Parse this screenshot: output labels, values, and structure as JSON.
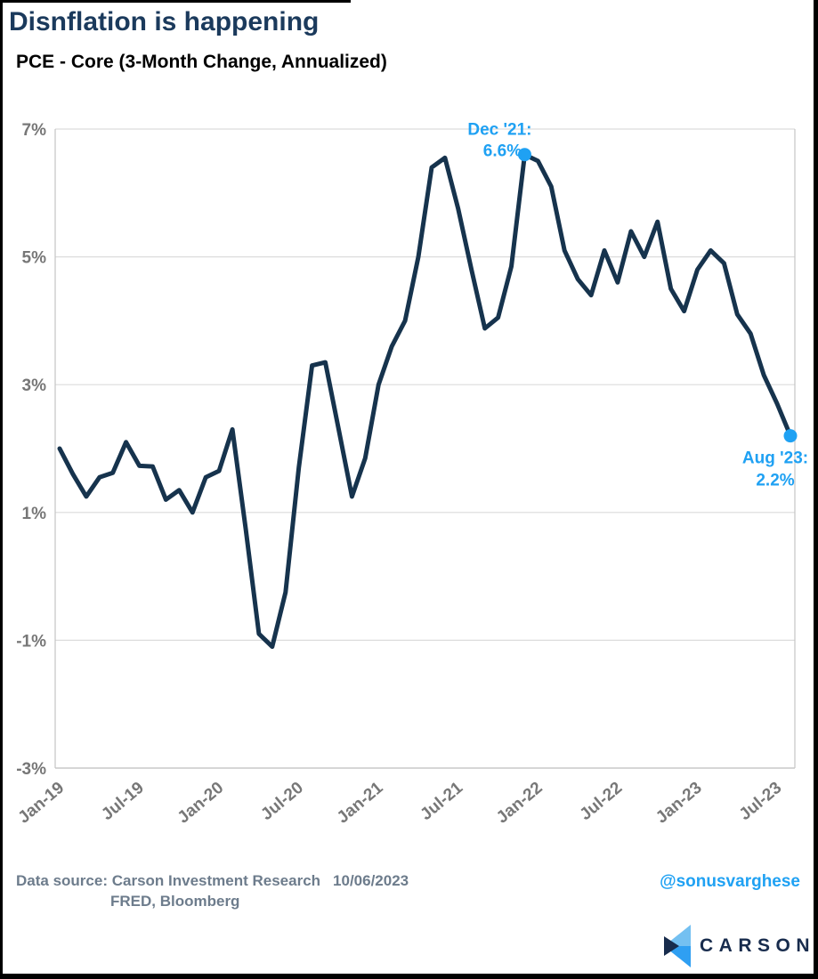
{
  "header": {
    "title": "Disnflation is happening",
    "subtitle": "PCE - Core (3-Month Change, Annualized)"
  },
  "chart_data": {
    "type": "line",
    "title": "PCE - Core (3-Month Change, Annualized)",
    "grid": "horizontal",
    "line_color": "#16334d",
    "accent_color": "#1fa1f3",
    "ylim": [
      -3,
      7
    ],
    "y_ticks": [
      7,
      5,
      3,
      1,
      -1,
      -3
    ],
    "y_tick_labels": [
      "7%",
      "5%",
      "3%",
      "1%",
      "-1%",
      "-3%"
    ],
    "x_tick_labels": [
      "Jan-19",
      "Jul-19",
      "Jan-20",
      "Jul-20",
      "Jan-21",
      "Jul-21",
      "Jan-22",
      "Jul-22",
      "Jan-23",
      "Jul-23"
    ],
    "x_tick_month_indices": [
      0,
      6,
      12,
      18,
      24,
      30,
      36,
      42,
      48,
      54
    ],
    "months": [
      "Jan-19",
      "Feb-19",
      "Mar-19",
      "Apr-19",
      "May-19",
      "Jun-19",
      "Jul-19",
      "Aug-19",
      "Sep-19",
      "Oct-19",
      "Nov-19",
      "Dec-19",
      "Jan-20",
      "Feb-20",
      "Mar-20",
      "Apr-20",
      "May-20",
      "Jun-20",
      "Jul-20",
      "Aug-20",
      "Sep-20",
      "Oct-20",
      "Nov-20",
      "Dec-20",
      "Jan-21",
      "Feb-21",
      "Mar-21",
      "Apr-21",
      "May-21",
      "Jun-21",
      "Jul-21",
      "Aug-21",
      "Sep-21",
      "Oct-21",
      "Nov-21",
      "Dec-21",
      "Jan-22",
      "Feb-22",
      "Mar-22",
      "Apr-22",
      "May-22",
      "Jun-22",
      "Jul-22",
      "Aug-22",
      "Sep-22",
      "Oct-22",
      "Nov-22",
      "Dec-22",
      "Jan-23",
      "Feb-23",
      "Mar-23",
      "Apr-23",
      "May-23",
      "Jun-23",
      "Jul-23",
      "Aug-23"
    ],
    "values": [
      2.0,
      1.6,
      1.25,
      1.55,
      1.62,
      2.1,
      1.73,
      1.72,
      1.2,
      1.35,
      1.0,
      1.55,
      1.65,
      2.3,
      0.75,
      -0.9,
      -1.1,
      -0.25,
      1.7,
      3.3,
      3.35,
      2.3,
      1.25,
      1.85,
      3.0,
      3.6,
      4.0,
      5.0,
      6.4,
      6.55,
      5.75,
      4.8,
      3.88,
      4.05,
      4.85,
      6.6,
      6.5,
      6.1,
      5.1,
      4.65,
      4.4,
      5.1,
      4.6,
      5.4,
      5.0,
      5.55,
      4.5,
      4.15,
      4.8,
      5.1,
      4.9,
      4.1,
      3.8,
      3.15,
      2.7,
      2.2
    ],
    "annotations": [
      {
        "index": 35,
        "line1": "Dec '21:",
        "line2": "6.6%",
        "placement": "above-left",
        "color": "#1fa1f3"
      },
      {
        "index": 55,
        "line1": "Aug '23:",
        "line2": "2.2%",
        "placement": "below-left",
        "color": "#1fa1f3"
      }
    ]
  },
  "footer": {
    "data_source_label": "Data source:",
    "sources_line1": "Carson Investment Research",
    "sources_line2": "FRED, Bloomberg",
    "date": "10/06/2023",
    "handle": "@sonusvarghese",
    "logo_text": "CARSON"
  },
  "colors": {
    "title_navy": "#1b3a5c",
    "line_navy": "#16334d",
    "annotation_blue": "#1fa1f3",
    "axis_gray": "#777777",
    "gridline_gray": "#dcdcdc",
    "source_gray": "#6d7c8c",
    "logo_navy": "#182c4d",
    "logo_light_blue": "#74c0f1",
    "logo_bright_blue": "#2f9ff2"
  }
}
